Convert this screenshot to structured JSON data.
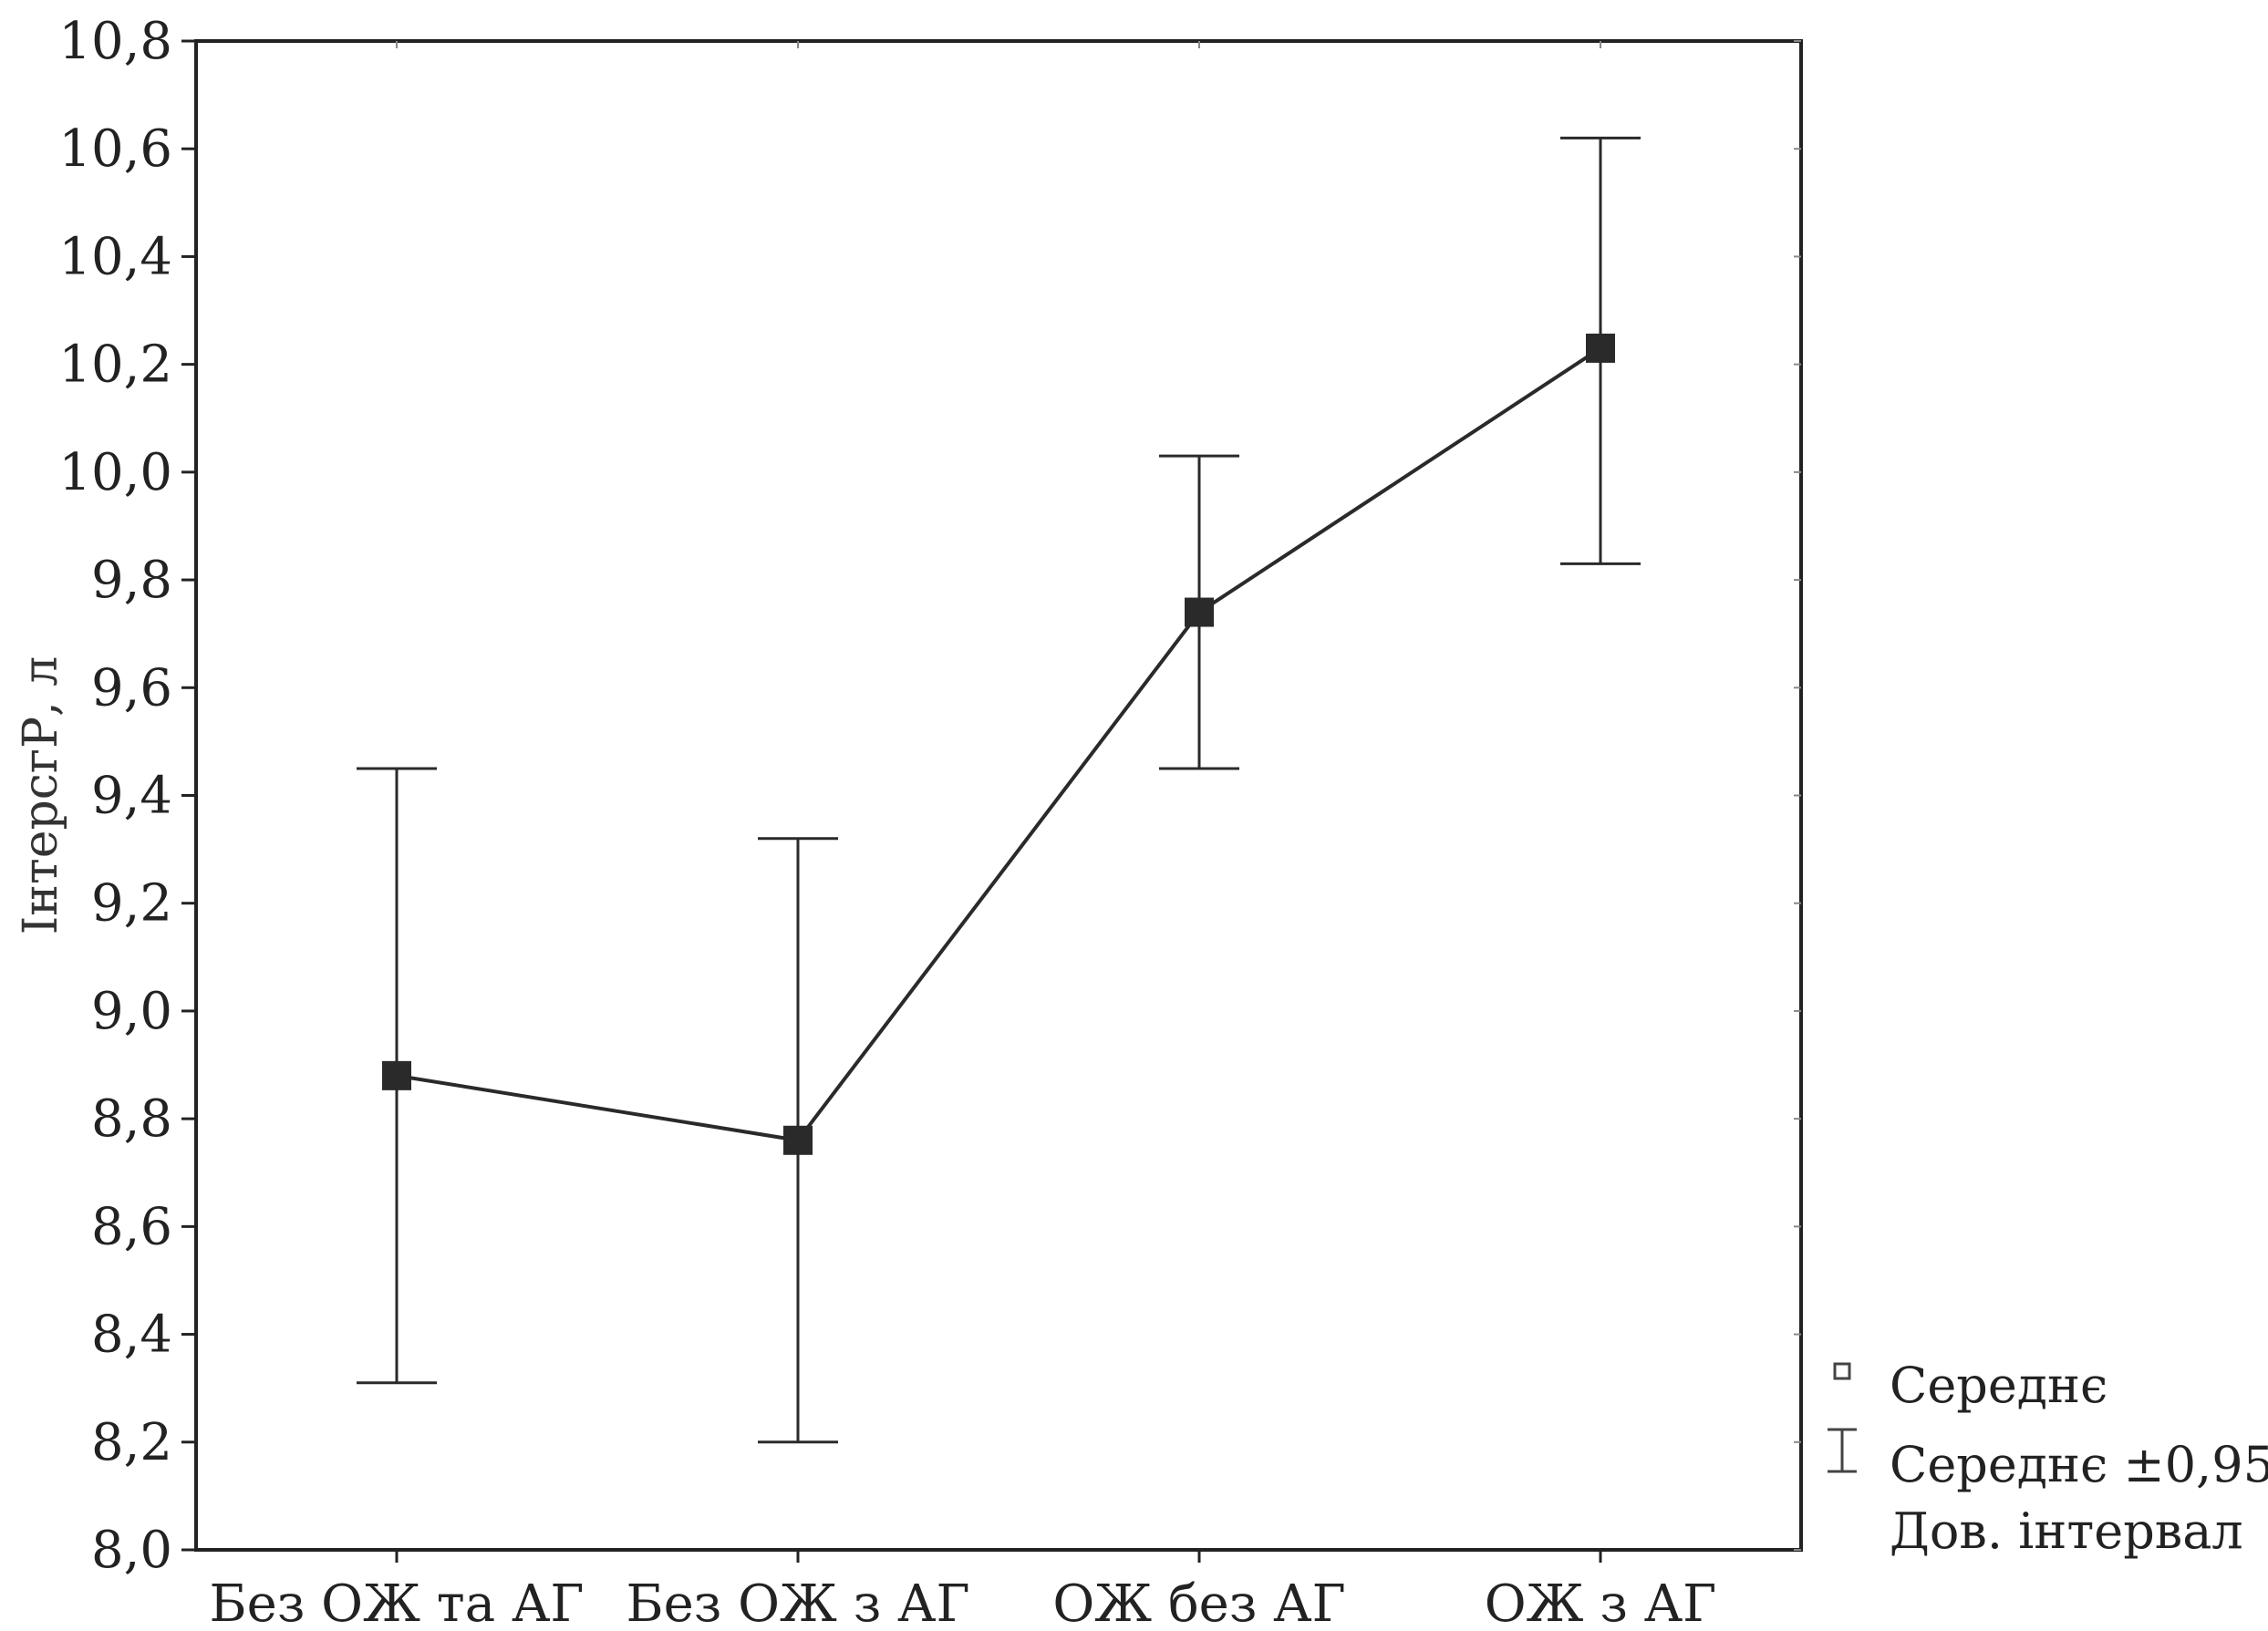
{
  "chart_data": {
    "type": "line",
    "title": "",
    "xlabel": "",
    "ylabel": "ІнтерсгР, л",
    "categories": [
      "Без ОЖ та АГ",
      "Без ОЖ з АГ",
      "ОЖ без АГ",
      "ОЖ з АГ"
    ],
    "series": [
      {
        "values": [
          8.88,
          8.76,
          9.74,
          10.23
        ],
        "ci_lower": [
          8.31,
          8.2,
          9.45,
          9.83
        ],
        "ci_upper": [
          9.45,
          9.32,
          10.03,
          10.62
        ]
      }
    ],
    "ylim": [
      8.0,
      10.8
    ],
    "yticks": [
      "10,8",
      "10,6",
      "10,4",
      "10,2",
      "10,0",
      "9,8",
      "9,6",
      "9,4",
      "9,2",
      "9,0",
      "8,8",
      "8,6",
      "8,4",
      "8,2",
      "8,0"
    ],
    "grid": false,
    "legend": {
      "placement": "right-bottom",
      "entries": [
        "Середнє",
        "Середнє ±0,95",
        "Дов. інтервал"
      ]
    },
    "colors": {
      "line": "#2a2a2a",
      "marker": "#2a2a2a",
      "axis": "#222222"
    }
  }
}
